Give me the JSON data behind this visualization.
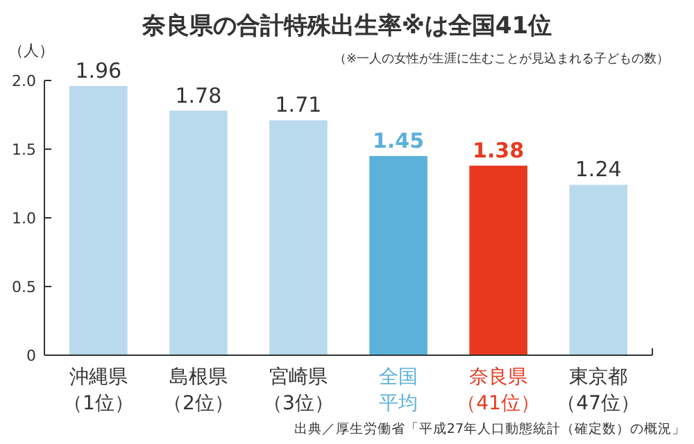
{
  "chart_data": {
    "type": "bar",
    "title": "奈良県の合計特殊出生率※は全国41位",
    "subtitle": "（※一人の女性が生涯に生むことが見込まれる子どもの数）",
    "ylabel": "（人）",
    "categories": [
      "沖縄県（1位）",
      "島根県（2位）",
      "宮崎県（3位）",
      "全国平均",
      "奈良県（41位）",
      "東京都（47位）"
    ],
    "values": [
      1.96,
      1.78,
      1.71,
      1.45,
      1.38,
      1.24
    ],
    "colors": [
      "#b9d9ec",
      "#b9d9ec",
      "#b9d9ec",
      "#5cb1da",
      "#e8391f",
      "#b9d9ec"
    ],
    "ylim": [
      0,
      2
    ],
    "yticks": [
      {
        "value": 0,
        "label": "0"
      },
      {
        "value": 0.5,
        "label": "0.5"
      },
      {
        "value": 1,
        "label": "1.0"
      },
      {
        "value": 1.5,
        "label": "1.5"
      },
      {
        "value": 2,
        "label": "2.0"
      }
    ],
    "data_labels": true,
    "grid": false,
    "annotations": [
      "出典／厚生労働省「平成27年人口動態統計（確定数）の概況」"
    ]
  }
}
